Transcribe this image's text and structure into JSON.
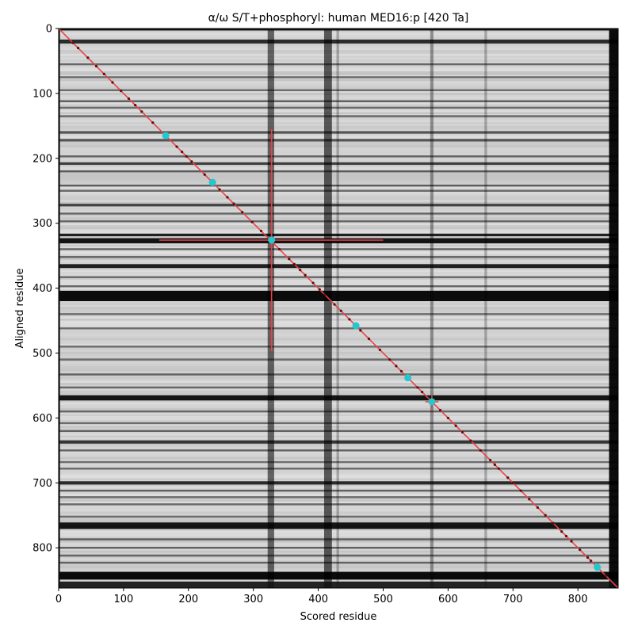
{
  "chart_data": {
    "type": "heatmap",
    "title": "α/ω S/T+phosphoryl: human MED16:p [420 Ta]",
    "xlabel": "Scored residue",
    "ylabel": "Aligned residue",
    "xlim": [
      0,
      862
    ],
    "ylim": [
      862,
      0
    ],
    "xticks": [
      0,
      100,
      200,
      300,
      400,
      500,
      600,
      700,
      800
    ],
    "yticks": [
      0,
      100,
      200,
      300,
      400,
      500,
      600,
      700,
      800
    ],
    "colormap": "greys (white = high, black = low)",
    "dark_rows": [
      {
        "at": 20,
        "w": 6,
        "d": 0.8
      },
      {
        "at": 55,
        "w": 3,
        "d": 0.5
      },
      {
        "at": 75,
        "w": 3,
        "d": 0.5
      },
      {
        "at": 95,
        "w": 3,
        "d": 0.5
      },
      {
        "at": 112,
        "w": 3,
        "d": 0.55
      },
      {
        "at": 122,
        "w": 3,
        "d": 0.5
      },
      {
        "at": 135,
        "w": 3,
        "d": 0.5
      },
      {
        "at": 160,
        "w": 4,
        "d": 0.6
      },
      {
        "at": 172,
        "w": 4,
        "d": 0.6
      },
      {
        "at": 197,
        "w": 3,
        "d": 0.5
      },
      {
        "at": 208,
        "w": 4,
        "d": 0.7
      },
      {
        "at": 220,
        "w": 3,
        "d": 0.55
      },
      {
        "at": 242,
        "w": 3,
        "d": 0.55
      },
      {
        "at": 250,
        "w": 3,
        "d": 0.5
      },
      {
        "at": 272,
        "w": 4,
        "d": 0.7
      },
      {
        "at": 285,
        "w": 3,
        "d": 0.5
      },
      {
        "at": 297,
        "w": 3,
        "d": 0.5
      },
      {
        "at": 318,
        "w": 4,
        "d": 0.85
      },
      {
        "at": 327,
        "w": 8,
        "d": 0.9
      },
      {
        "at": 340,
        "w": 3,
        "d": 0.55
      },
      {
        "at": 352,
        "w": 3,
        "d": 0.5
      },
      {
        "at": 366,
        "w": 6,
        "d": 0.85
      },
      {
        "at": 383,
        "w": 3,
        "d": 0.5
      },
      {
        "at": 397,
        "w": 3,
        "d": 0.5
      },
      {
        "at": 412,
        "w": 16,
        "d": 0.95
      },
      {
        "at": 440,
        "w": 3,
        "d": 0.5
      },
      {
        "at": 462,
        "w": 3,
        "d": 0.5
      },
      {
        "at": 490,
        "w": 3,
        "d": 0.45
      },
      {
        "at": 510,
        "w": 3,
        "d": 0.45
      },
      {
        "at": 533,
        "w": 3,
        "d": 0.5
      },
      {
        "at": 553,
        "w": 3,
        "d": 0.5
      },
      {
        "at": 569,
        "w": 8,
        "d": 0.9
      },
      {
        "at": 590,
        "w": 3,
        "d": 0.5
      },
      {
        "at": 608,
        "w": 3,
        "d": 0.5
      },
      {
        "at": 620,
        "w": 3,
        "d": 0.55
      },
      {
        "at": 637,
        "w": 5,
        "d": 0.75
      },
      {
        "at": 650,
        "w": 3,
        "d": 0.5
      },
      {
        "at": 668,
        "w": 3,
        "d": 0.5
      },
      {
        "at": 678,
        "w": 3,
        "d": 0.5
      },
      {
        "at": 700,
        "w": 5,
        "d": 0.8
      },
      {
        "at": 712,
        "w": 3,
        "d": 0.55
      },
      {
        "at": 722,
        "w": 3,
        "d": 0.5
      },
      {
        "at": 733,
        "w": 3,
        "d": 0.5
      },
      {
        "at": 752,
        "w": 3,
        "d": 0.5
      },
      {
        "at": 766,
        "w": 10,
        "d": 0.9
      },
      {
        "at": 787,
        "w": 3,
        "d": 0.55
      },
      {
        "at": 800,
        "w": 3,
        "d": 0.55
      },
      {
        "at": 812,
        "w": 3,
        "d": 0.5
      },
      {
        "at": 823,
        "w": 3,
        "d": 0.55
      },
      {
        "at": 843,
        "w": 12,
        "d": 0.95
      }
    ],
    "dark_cols": [
      {
        "at": 327,
        "w": 10,
        "d": 0.55
      },
      {
        "at": 415,
        "w": 12,
        "d": 0.6
      },
      {
        "at": 430,
        "w": 4,
        "d": 0.25
      },
      {
        "at": 575,
        "w": 5,
        "d": 0.35
      },
      {
        "at": 658,
        "w": 4,
        "d": 0.25
      },
      {
        "at": 855,
        "w": 14,
        "d": 0.95
      }
    ],
    "edge_dark": {
      "left": 2,
      "top": 3,
      "bottom": 10
    },
    "diagonal": {
      "x": [
        0,
        862
      ],
      "y": [
        0,
        862
      ],
      "color": "#e8414a"
    },
    "diagonal_dots": [
      22,
      30,
      45,
      58,
      70,
      83,
      96,
      108,
      118,
      128,
      145,
      182,
      190,
      197,
      205,
      225,
      248,
      260,
      270,
      283,
      298,
      312,
      340,
      355,
      363,
      372,
      380,
      392,
      402,
      410,
      425,
      435,
      448,
      465,
      478,
      495,
      510,
      520,
      528,
      553,
      560,
      588,
      600,
      612,
      622,
      635,
      650,
      665,
      672,
      678,
      692,
      700,
      712,
      725,
      738,
      750,
      762,
      775,
      782,
      790,
      803,
      815,
      820,
      843
    ],
    "highlight_points": [
      {
        "x": 165,
        "y": 165
      },
      {
        "x": 237,
        "y": 237
      },
      {
        "x": 458,
        "y": 458
      },
      {
        "x": 538,
        "y": 538
      },
      {
        "x": 575,
        "y": 575
      },
      {
        "x": 830,
        "y": 830
      }
    ],
    "crosshair": {
      "x": 328,
      "y": 326,
      "xspan": [
        155,
        500
      ],
      "yspan": [
        155,
        497
      ],
      "color": "#e8414a"
    },
    "small_cross": {
      "x": 575,
      "y": 575,
      "half": 10,
      "color": "#e8414a"
    },
    "colors": {
      "highlight": "#23c7cc",
      "line": "#e8414a",
      "dot": "#5a1010"
    }
  }
}
